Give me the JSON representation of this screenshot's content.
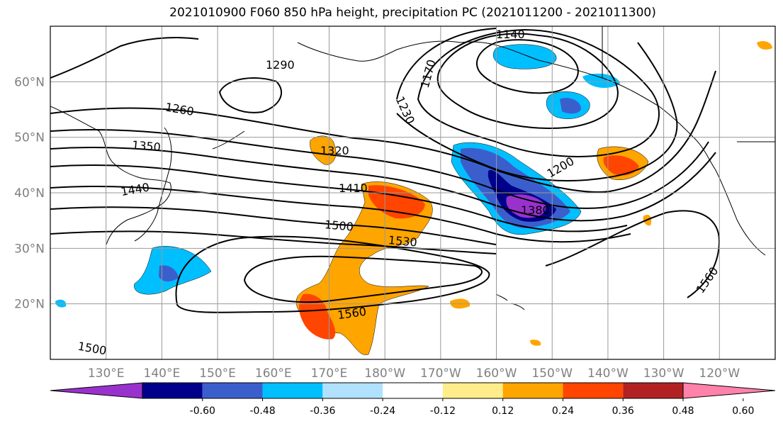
{
  "title": "2021010900 F060 850 hPa height, precipitation PC (2021011200 - 2021011300)",
  "map": {
    "lat_labels": [
      {
        "text": "60°N",
        "lat": 60
      },
      {
        "text": "50°N",
        "lat": 50
      },
      {
        "text": "40°N",
        "lat": 40
      },
      {
        "text": "30°N",
        "lat": 30
      },
      {
        "text": "20°N",
        "lat": 20
      }
    ],
    "lon_labels": [
      {
        "text": "130°E",
        "lon": 130
      },
      {
        "text": "140°E",
        "lon": 140
      },
      {
        "text": "150°E",
        "lon": 150
      },
      {
        "text": "160°E",
        "lon": 160
      },
      {
        "text": "170°E",
        "lon": 170
      },
      {
        "text": "180°W",
        "lon": 180
      },
      {
        "text": "170°W",
        "lon": 190
      },
      {
        "text": "160°W",
        "lon": 200
      },
      {
        "text": "150°W",
        "lon": 210
      },
      {
        "text": "140°W",
        "lon": 220
      },
      {
        "text": "130°W",
        "lon": 230
      },
      {
        "text": "120°W",
        "lon": 240
      }
    ],
    "lon_range": [
      120,
      250
    ],
    "lat_range": [
      10,
      70
    ],
    "grid": true,
    "contour_labels": [
      "1140",
      "1170",
      "1200",
      "1230",
      "1260",
      "1290",
      "1320",
      "1350",
      "1380",
      "1410",
      "1440",
      "1500",
      "1530",
      "1560"
    ]
  },
  "colorbar": {
    "ticks": [
      "-0.60",
      "-0.48",
      "-0.36",
      "-0.24",
      "-0.12",
      "0.12",
      "0.24",
      "0.36",
      "0.48",
      "0.60"
    ],
    "colors": [
      "#9932cc",
      "#00008b",
      "#3a5fcd",
      "#00bfff",
      "#b0e2ff",
      "#ffffff",
      "#ffec8b",
      "#ffa500",
      "#ff4500",
      "#b22222",
      "#ff82ab"
    ]
  }
}
